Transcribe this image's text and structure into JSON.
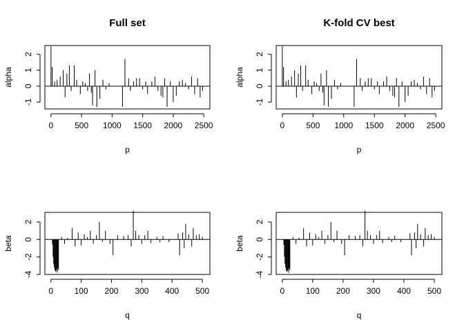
{
  "chart_data": [
    {
      "type": "spike",
      "title": "Full set",
      "x_label": "p",
      "y_label": "alpha",
      "color": "#000000",
      "x": [
        0,
        20,
        60,
        100,
        150,
        200,
        230,
        260,
        300,
        330,
        380,
        420,
        480,
        520,
        560,
        600,
        630,
        660,
        680,
        720,
        750,
        800,
        850,
        900,
        950,
        1170,
        1210,
        1270,
        1300,
        1350,
        1400,
        1450,
        1500,
        1550,
        1580,
        1650,
        1700,
        1750,
        1800,
        1830,
        1860,
        1900,
        1950,
        2000,
        2050,
        2100,
        2150,
        2200,
        2250,
        2300,
        2350,
        2400,
        2440,
        2480
      ],
      "values": [
        2.5,
        1.2,
        0.3,
        0.4,
        0.6,
        1.0,
        -0.7,
        0.8,
        1.3,
        -0.3,
        1.3,
        0.4,
        -0.5,
        0.3,
        0.2,
        -0.3,
        0.8,
        -0.4,
        -1.2,
        1.0,
        -1.3,
        -0.8,
        0.4,
        -0.2,
        0.2,
        -1.3,
        1.7,
        0.5,
        -0.3,
        0.3,
        0.5,
        0.5,
        -0.2,
        0.3,
        -0.5,
        0.3,
        0.6,
        -0.3,
        -0.6,
        -0.7,
        0.5,
        -1.3,
        0.3,
        -1.0,
        -0.6,
        0.3,
        0.4,
        0.2,
        -0.2,
        0.6,
        -0.5,
        0.5,
        -0.7,
        -0.3
      ],
      "xlim": [
        -100,
        2600
      ],
      "ylim": [
        -1.43,
        2.55
      ],
      "xticks": [
        0,
        500,
        1000,
        1500,
        2000,
        2500
      ],
      "yticks": [
        -1,
        0,
        1,
        2
      ]
    },
    {
      "type": "spike",
      "title": "K-fold CV best",
      "x_label": "p",
      "y_label": "alpha",
      "color": "#000000",
      "x": [
        0,
        20,
        60,
        100,
        150,
        200,
        230,
        260,
        300,
        330,
        380,
        420,
        480,
        520,
        560,
        600,
        630,
        660,
        680,
        720,
        750,
        800,
        850,
        900,
        950,
        1170,
        1210,
        1270,
        1300,
        1350,
        1400,
        1450,
        1500,
        1550,
        1580,
        1650,
        1700,
        1750,
        1800,
        1830,
        1860,
        1900,
        1950,
        2000,
        2050,
        2100,
        2150,
        2200,
        2250,
        2300,
        2350,
        2400,
        2440,
        2480
      ],
      "values": [
        2.5,
        1.2,
        0.3,
        0.4,
        0.6,
        1.0,
        -0.7,
        0.8,
        1.3,
        -0.3,
        1.3,
        0.4,
        -0.5,
        0.3,
        0.2,
        -0.3,
        0.8,
        -0.4,
        -1.2,
        1.0,
        -1.3,
        -0.8,
        0.4,
        -0.2,
        0.2,
        -1.3,
        1.7,
        0.5,
        -0.3,
        0.3,
        0.5,
        0.5,
        -0.2,
        0.3,
        -0.5,
        0.3,
        0.6,
        -0.3,
        -0.6,
        -0.7,
        0.5,
        -1.3,
        0.3,
        -1.0,
        -0.6,
        0.3,
        0.4,
        0.2,
        -0.2,
        0.6,
        -0.5,
        0.5,
        -0.7,
        -0.3
      ],
      "xlim": [
        -100,
        2600
      ],
      "ylim": [
        -1.43,
        2.55
      ],
      "xticks": [
        0,
        500,
        1000,
        1500,
        2000,
        2500
      ],
      "yticks": [
        -1,
        0,
        1,
        2
      ]
    },
    {
      "type": "spike",
      "x_label": "q",
      "y_label": "beta",
      "color": "#000000",
      "x": [
        5,
        7,
        9,
        11,
        13,
        15,
        17,
        19,
        21,
        23,
        25,
        35,
        45,
        55,
        70,
        80,
        90,
        100,
        110,
        120,
        130,
        140,
        150,
        160,
        170,
        180,
        195,
        205,
        220,
        240,
        255,
        265,
        272,
        280,
        290,
        300,
        310,
        320,
        330,
        350,
        360,
        370,
        390,
        420,
        425,
        435,
        440,
        445,
        455,
        465,
        470,
        480,
        490,
        500
      ],
      "values": [
        -0.6,
        -2,
        -2.8,
        -3.2,
        -3.5,
        -3.7,
        -3.6,
        -3.4,
        -3.8,
        -3.3,
        -3.5,
        0.3,
        -0.5,
        0.2,
        1.3,
        -0.8,
        0.8,
        -0.7,
        0.6,
        0.3,
        1.0,
        -0.5,
        0.5,
        2.0,
        -0.3,
        1.0,
        -0.5,
        -1.8,
        0.5,
        0.4,
        0.5,
        -0.8,
        3.3,
        1.0,
        0.5,
        -0.5,
        0.5,
        1.0,
        -0.4,
        0.3,
        -0.3,
        0.4,
        -0.3,
        0.7,
        -1.8,
        0.8,
        -1.0,
        1.8,
        0.6,
        -0.8,
        1.3,
        0.5,
        0.6,
        0.3
      ],
      "xlim": [
        -20,
        525
      ],
      "ylim": [
        -4,
        3.1
      ],
      "xticks": [
        0,
        100,
        200,
        300,
        400,
        500
      ],
      "yticks": [
        -4,
        -2,
        0,
        2
      ]
    },
    {
      "type": "spike",
      "x_label": "q",
      "y_label": "beta",
      "color": "#000000",
      "x": [
        5,
        7,
        9,
        11,
        13,
        15,
        17,
        19,
        21,
        23,
        25,
        35,
        45,
        55,
        70,
        80,
        90,
        100,
        110,
        120,
        130,
        140,
        150,
        160,
        170,
        180,
        195,
        205,
        220,
        240,
        255,
        265,
        272,
        280,
        290,
        300,
        310,
        320,
        330,
        350,
        360,
        370,
        390,
        420,
        425,
        435,
        440,
        445,
        455,
        465,
        470,
        480,
        490,
        500
      ],
      "values": [
        -0.6,
        -2,
        -2.8,
        -3.2,
        -3.5,
        -3.7,
        -3.6,
        -3.4,
        -3.8,
        -3.3,
        -3.5,
        0.3,
        -0.5,
        0.2,
        1.3,
        -0.8,
        0.8,
        -0.7,
        0.6,
        0.3,
        1.0,
        -0.5,
        0.5,
        2.0,
        -0.3,
        1.0,
        -0.5,
        -1.8,
        0.5,
        0.4,
        0.5,
        -0.8,
        3.3,
        1.0,
        0.5,
        -0.5,
        0.5,
        1.0,
        -0.4,
        0.3,
        -0.3,
        0.4,
        -0.3,
        0.7,
        -1.8,
        0.8,
        -1.0,
        1.8,
        0.6,
        -0.8,
        1.3,
        0.5,
        0.6,
        0.3
      ],
      "xlim": [
        -20,
        525
      ],
      "ylim": [
        -4,
        3.1
      ],
      "xticks": [
        0,
        100,
        200,
        300,
        400,
        500
      ],
      "yticks": [
        -4,
        -2,
        0,
        2
      ]
    }
  ]
}
